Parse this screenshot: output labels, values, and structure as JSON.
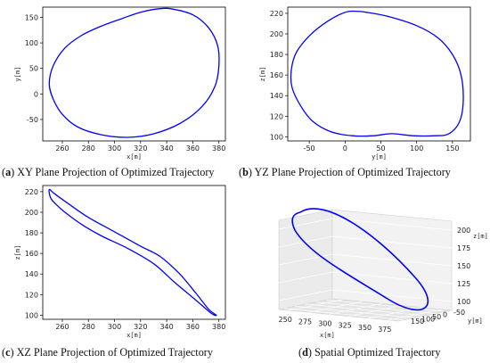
{
  "captions": [
    {
      "tag": "a",
      "text": " XY Plane Projection of Optimized Trajectory"
    },
    {
      "tag": "b",
      "text": " YZ Plane Projection of Optimized Trajectory"
    },
    {
      "tag": "c",
      "text": " XZ Plane Projection of Optimized Trajectory"
    },
    {
      "tag": "d",
      "text": " Spatial Optimized Trajectory"
    }
  ],
  "chart_data": [
    {
      "type": "line",
      "xlabel": "x[m]",
      "ylabel": "y[m]",
      "xlim": [
        245,
        385
      ],
      "ylim": [
        -92,
        170
      ],
      "xticks": [
        260,
        280,
        300,
        320,
        340,
        360,
        380
      ],
      "yticks": [
        -50,
        0,
        50,
        100,
        150
      ],
      "color": "#0000ff",
      "x": [
        250,
        253,
        262,
        275,
        290,
        305,
        320,
        335,
        345,
        360,
        372,
        379,
        380,
        377,
        367,
        350,
        330,
        310,
        290,
        272,
        260,
        253,
        250
      ],
      "y": [
        20,
        55,
        90,
        115,
        133,
        147,
        160,
        167,
        166,
        155,
        130,
        95,
        55,
        15,
        -25,
        -58,
        -78,
        -85,
        -80,
        -65,
        -40,
        -10,
        20
      ]
    },
    {
      "type": "line",
      "xlabel": "y[m]",
      "ylabel": "z[m]",
      "xlim": [
        -80,
        175
      ],
      "ylim": [
        96,
        226
      ],
      "xticks": [
        -50,
        0,
        50,
        100,
        150
      ],
      "yticks": [
        100,
        120,
        140,
        160,
        180,
        200,
        220
      ],
      "color": "#0000ff",
      "x": [
        15,
        30,
        60,
        100,
        130,
        150,
        162,
        165,
        160,
        145,
        125,
        95,
        65,
        40,
        10,
        -20,
        -45,
        -62,
        -74,
        -75,
        -68,
        -50,
        -25,
        0,
        15
      ],
      "y": [
        222,
        221,
        217,
        208,
        196,
        180,
        160,
        135,
        115,
        103,
        101,
        101,
        103,
        101,
        101,
        105,
        115,
        130,
        148,
        165,
        182,
        198,
        212,
        221,
        222
      ]
    },
    {
      "type": "line",
      "xlabel": "x[m]",
      "ylabel": "z[m]",
      "xlim": [
        245,
        385
      ],
      "ylim": [
        96,
        226
      ],
      "xticks": [
        260,
        280,
        300,
        320,
        340,
        360,
        380
      ],
      "yticks": [
        100,
        120,
        140,
        160,
        180,
        200,
        220
      ],
      "color": "#0000ff",
      "x": [
        250,
        254,
        265,
        280,
        300,
        320,
        335,
        350,
        362,
        372,
        378,
        374,
        362,
        346,
        330,
        310,
        290,
        275,
        262,
        255,
        251,
        250
      ],
      "y": [
        222,
        218,
        208,
        195,
        181,
        167,
        157,
        140,
        122,
        106,
        100,
        102,
        115,
        132,
        150,
        165,
        177,
        188,
        200,
        208,
        214,
        222
      ]
    },
    {
      "type": "scatter",
      "xlabel": "x[m]",
      "ylabel": "y[m]",
      "zlabel": "z[m]",
      "xticks": [
        250,
        275,
        300,
        325,
        350,
        375
      ],
      "yticks": [
        -50,
        0,
        50,
        100,
        150
      ],
      "zticks": [
        100,
        125,
        150,
        175,
        200
      ],
      "color": "#0000ff"
    }
  ]
}
